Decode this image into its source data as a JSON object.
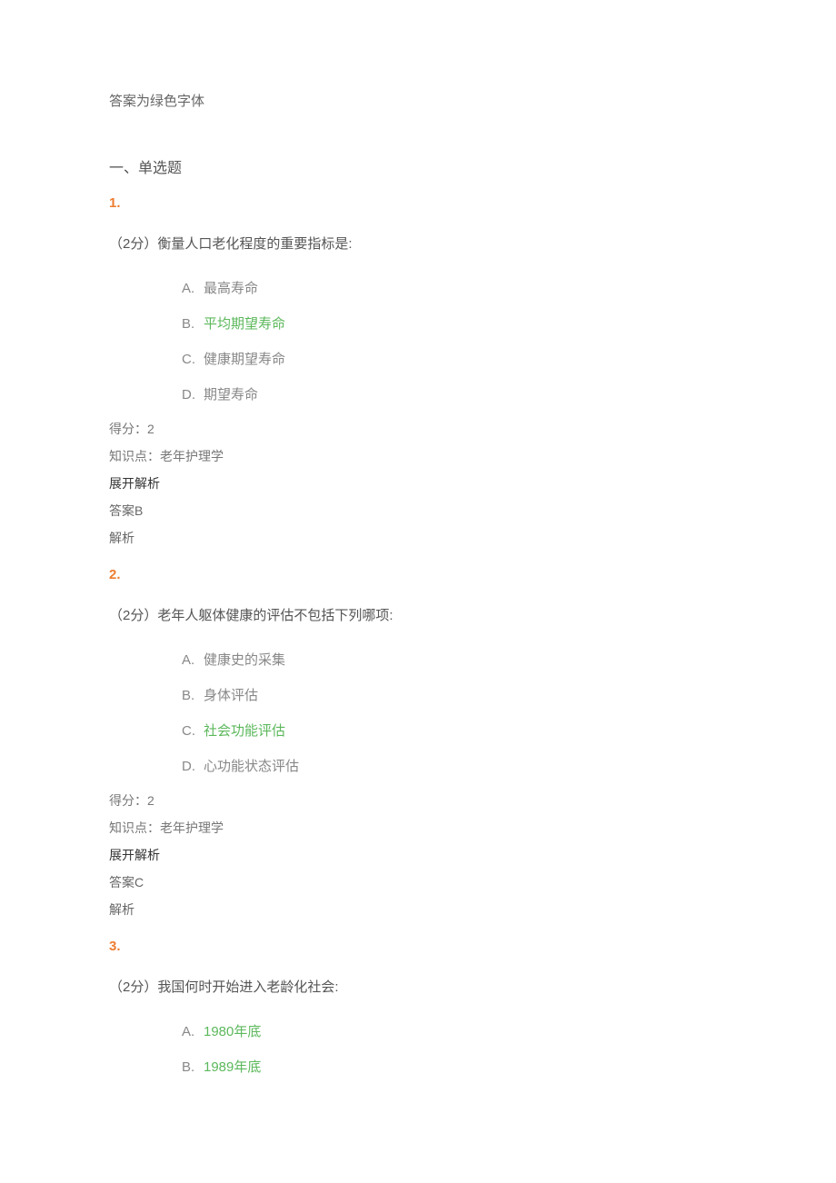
{
  "header_note": "答案为绿色字体",
  "section_title": "一、单选题",
  "colors": {
    "correct_answer": "#5cb85c",
    "question_number": "#ed7d31",
    "body_text": "#555555",
    "option_text": "#888888",
    "meta_text": "#777777",
    "background": "#ffffff"
  },
  "typography": {
    "body_fontsize": 15,
    "meta_fontsize": 14,
    "number_fontweight": "bold"
  },
  "questions": [
    {
      "number": "1.",
      "stem": "（2分）衡量人口老化程度的重要指标是:",
      "options": [
        {
          "letter": "A.",
          "text": "最高寿命",
          "correct": false
        },
        {
          "letter": "B.",
          "text": "平均期望寿命",
          "correct": true
        },
        {
          "letter": "C.",
          "text": "健康期望寿命",
          "correct": false
        },
        {
          "letter": "D.",
          "text": "期望寿命",
          "correct": false
        }
      ],
      "score_line": "得分：2",
      "knowledge_line": "知识点：老年护理学",
      "expand_label": "展开解析",
      "answer_line": "答案B",
      "analysis_line": "解析"
    },
    {
      "number": "2.",
      "stem": "（2分）老年人躯体健康的评估不包括下列哪项:",
      "options": [
        {
          "letter": "A.",
          "text": "健康史的采集",
          "correct": false
        },
        {
          "letter": "B.",
          "text": "身体评估",
          "correct": false
        },
        {
          "letter": "C.",
          "text": "社会功能评估",
          "correct": true
        },
        {
          "letter": "D.",
          "text": "心功能状态评估",
          "correct": false
        }
      ],
      "score_line": "得分：2",
      "knowledge_line": "知识点：老年护理学",
      "expand_label": "展开解析",
      "answer_line": "答案C",
      "analysis_line": "解析"
    },
    {
      "number": "3.",
      "stem": "（2分）我国何时开始进入老龄化社会:",
      "options": [
        {
          "letter": "A.",
          "text": "1980年底",
          "correct": true
        },
        {
          "letter": "B.",
          "text": "1989年底",
          "correct": true
        }
      ],
      "score_line": "",
      "knowledge_line": "",
      "expand_label": "",
      "answer_line": "",
      "analysis_line": ""
    }
  ]
}
